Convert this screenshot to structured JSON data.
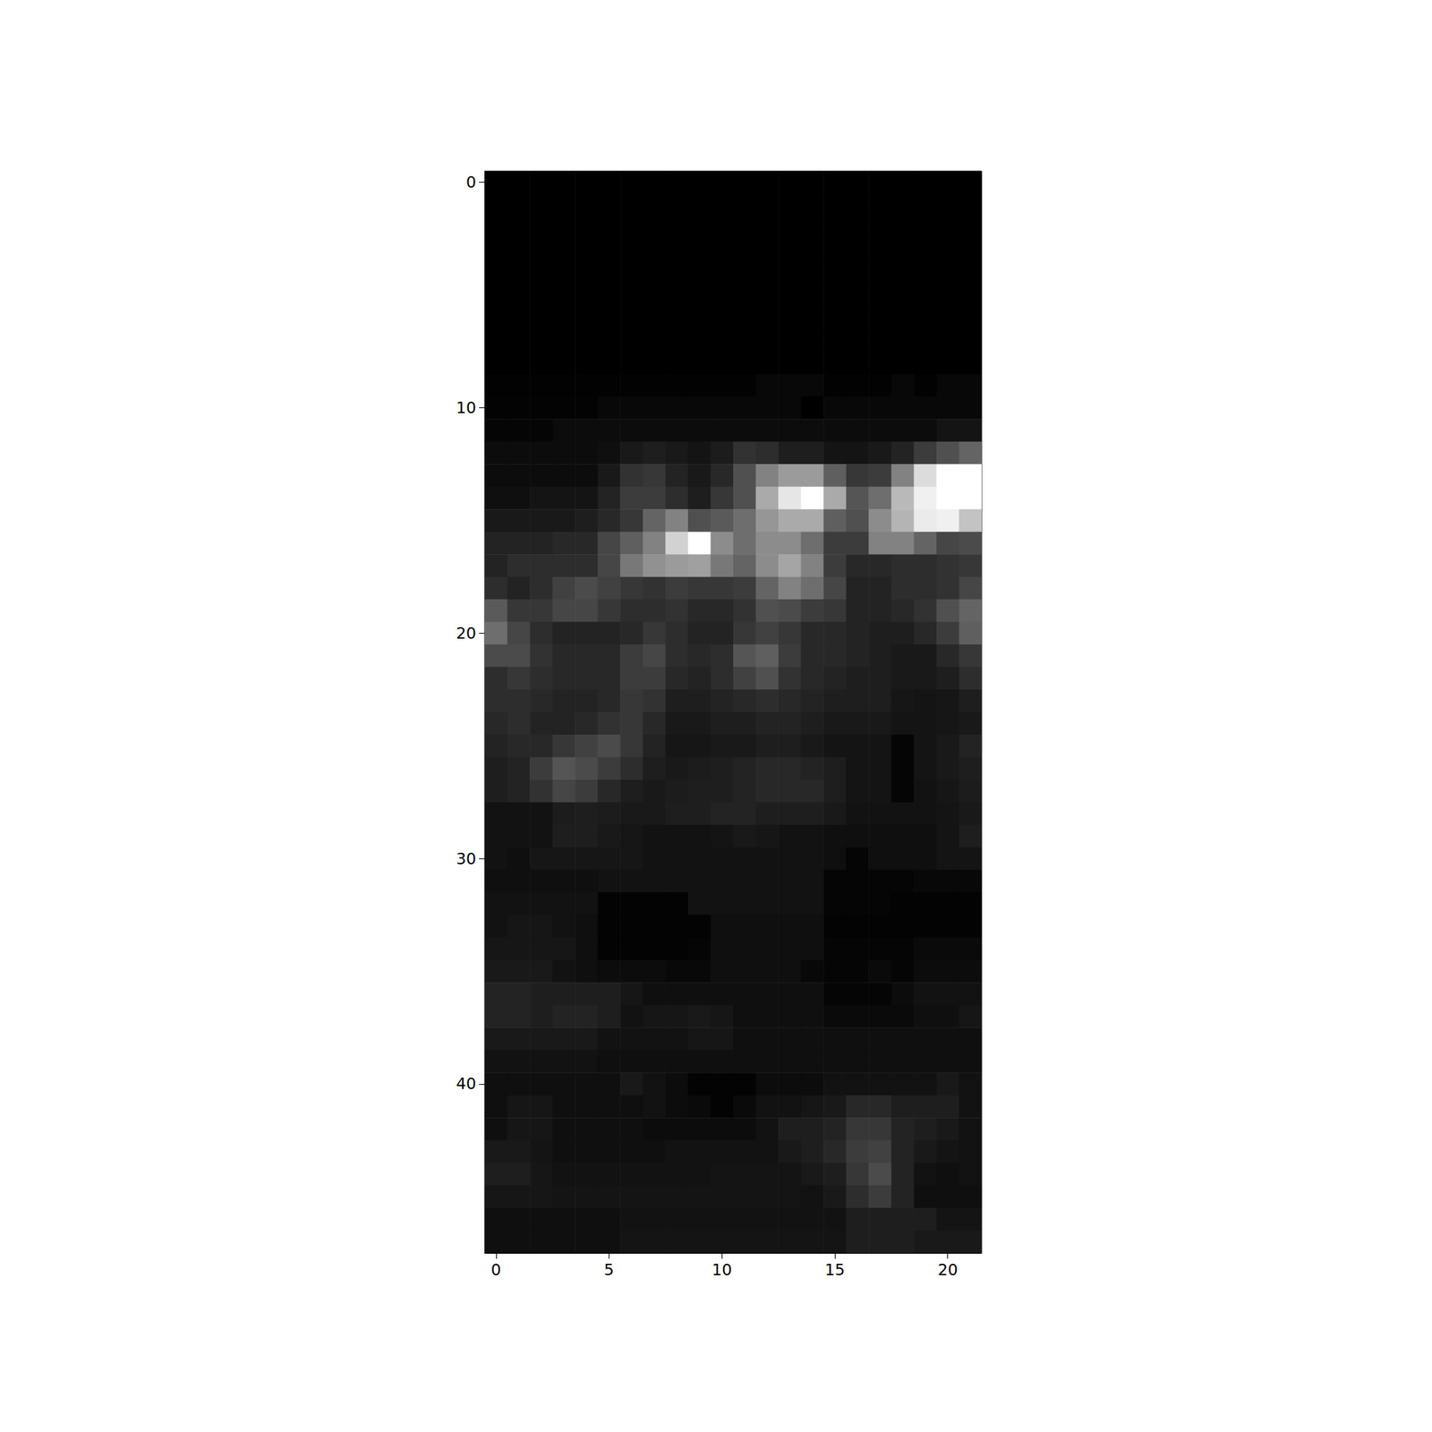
{
  "chart_data": {
    "type": "heatmap",
    "color": "gray",
    "color_range": [
      0,
      255
    ],
    "xlim": [
      -0.5,
      21.5
    ],
    "ylim": [
      47.5,
      -0.5
    ],
    "xticks": [
      0,
      5,
      10,
      15,
      20
    ],
    "yticks": [
      0,
      10,
      20,
      30,
      40
    ],
    "cells": [
      [
        0,
        0,
        0,
        0,
        0,
        0,
        0,
        0,
        0,
        0,
        0,
        0,
        0,
        0,
        0,
        0,
        0,
        0,
        0,
        0,
        0,
        0
      ],
      [
        0,
        0,
        0,
        0,
        0,
        0,
        0,
        0,
        0,
        0,
        0,
        0,
        0,
        0,
        0,
        0,
        0,
        0,
        0,
        0,
        0,
        0
      ],
      [
        0,
        0,
        0,
        0,
        0,
        0,
        0,
        0,
        0,
        0,
        0,
        0,
        0,
        0,
        0,
        0,
        0,
        0,
        0,
        0,
        0,
        0
      ],
      [
        0,
        0,
        0,
        0,
        0,
        0,
        0,
        0,
        0,
        0,
        0,
        0,
        0,
        0,
        0,
        0,
        0,
        0,
        0,
        0,
        0,
        0
      ],
      [
        0,
        0,
        0,
        0,
        0,
        0,
        0,
        0,
        0,
        0,
        0,
        0,
        0,
        0,
        0,
        0,
        0,
        0,
        0,
        0,
        0,
        0
      ],
      [
        0,
        0,
        0,
        0,
        0,
        0,
        0,
        0,
        0,
        0,
        0,
        0,
        0,
        0,
        0,
        0,
        0,
        0,
        0,
        0,
        0,
        0
      ],
      [
        0,
        0,
        0,
        0,
        0,
        0,
        0,
        0,
        0,
        0,
        0,
        0,
        0,
        0,
        0,
        0,
        0,
        0,
        0,
        0,
        0,
        0
      ],
      [
        0,
        0,
        0,
        0,
        0,
        0,
        0,
        0,
        0,
        0,
        0,
        0,
        0,
        0,
        0,
        0,
        0,
        0,
        0,
        0,
        0,
        0
      ],
      [
        0,
        0,
        0,
        0,
        0,
        0,
        0,
        0,
        0,
        0,
        0,
        0,
        0,
        0,
        0,
        0,
        0,
        0,
        0,
        0,
        0,
        0
      ],
      [
        2,
        2,
        2,
        2,
        2,
        2,
        2,
        2,
        2,
        2,
        2,
        2,
        8,
        8,
        8,
        2,
        2,
        2,
        8,
        2,
        8,
        8
      ],
      [
        3,
        3,
        3,
        3,
        3,
        8,
        8,
        8,
        8,
        8,
        8,
        8,
        8,
        8,
        0,
        8,
        8,
        8,
        8,
        8,
        8,
        8
      ],
      [
        5,
        5,
        5,
        12,
        12,
        12,
        12,
        12,
        12,
        12,
        12,
        12,
        12,
        12,
        12,
        12,
        12,
        12,
        12,
        12,
        20,
        20
      ],
      [
        12,
        12,
        12,
        12,
        12,
        15,
        25,
        30,
        25,
        20,
        28,
        50,
        45,
        30,
        30,
        20,
        20,
        25,
        35,
        60,
        80,
        100
      ],
      [
        12,
        12,
        12,
        12,
        12,
        25,
        50,
        55,
        35,
        25,
        40,
        80,
        130,
        155,
        155,
        95,
        55,
        60,
        130,
        220,
        255,
        255
      ],
      [
        15,
        15,
        20,
        20,
        20,
        35,
        60,
        60,
        45,
        30,
        55,
        80,
        170,
        230,
        255,
        170,
        85,
        110,
        185,
        240,
        255,
        255
      ],
      [
        25,
        25,
        25,
        25,
        30,
        40,
        55,
        100,
        130,
        80,
        90,
        110,
        150,
        170,
        170,
        95,
        80,
        140,
        180,
        235,
        240,
        195
      ],
      [
        35,
        35,
        35,
        40,
        40,
        70,
        95,
        130,
        210,
        255,
        140,
        110,
        140,
        140,
        110,
        60,
        60,
        130,
        130,
        100,
        70,
        75
      ],
      [
        35,
        45,
        45,
        45,
        45,
        70,
        120,
        145,
        155,
        160,
        120,
        100,
        140,
        165,
        130,
        60,
        40,
        40,
        45,
        45,
        50,
        55
      ],
      [
        45,
        35,
        45,
        65,
        75,
        65,
        55,
        50,
        60,
        55,
        55,
        60,
        100,
        130,
        110,
        70,
        35,
        35,
        45,
        45,
        50,
        70
      ],
      [
        90,
        55,
        55,
        70,
        70,
        55,
        45,
        45,
        50,
        40,
        40,
        50,
        80,
        75,
        60,
        55,
        35,
        35,
        40,
        50,
        80,
        100
      ],
      [
        110,
        70,
        45,
        35,
        35,
        35,
        40,
        55,
        45,
        35,
        35,
        55,
        65,
        55,
        40,
        40,
        35,
        30,
        30,
        40,
        60,
        95
      ],
      [
        75,
        75,
        50,
        40,
        40,
        40,
        60,
        70,
        45,
        40,
        45,
        85,
        95,
        60,
        40,
        40,
        35,
        30,
        25,
        25,
        40,
        55
      ],
      [
        45,
        55,
        45,
        40,
        40,
        40,
        60,
        60,
        40,
        35,
        45,
        65,
        80,
        50,
        40,
        35,
        30,
        30,
        25,
        25,
        30,
        45
      ],
      [
        45,
        45,
        40,
        35,
        35,
        40,
        55,
        50,
        30,
        30,
        35,
        40,
        45,
        40,
        35,
        30,
        30,
        30,
        22,
        20,
        22,
        30
      ],
      [
        40,
        45,
        35,
        35,
        40,
        50,
        55,
        40,
        25,
        25,
        30,
        30,
        35,
        35,
        30,
        25,
        25,
        25,
        20,
        20,
        22,
        25
      ],
      [
        35,
        40,
        40,
        55,
        65,
        75,
        55,
        35,
        22,
        22,
        25,
        25,
        30,
        30,
        25,
        20,
        20,
        20,
        5,
        20,
        25,
        35
      ],
      [
        30,
        35,
        60,
        85,
        75,
        60,
        45,
        30,
        25,
        28,
        30,
        35,
        40,
        40,
        35,
        30,
        20,
        20,
        5,
        20,
        25,
        30
      ],
      [
        30,
        35,
        50,
        70,
        60,
        40,
        30,
        25,
        28,
        30,
        30,
        35,
        40,
        40,
        40,
        30,
        20,
        20,
        5,
        18,
        22,
        28
      ],
      [
        18,
        18,
        18,
        28,
        30,
        28,
        25,
        25,
        30,
        30,
        35,
        35,
        30,
        30,
        30,
        25,
        18,
        18,
        18,
        18,
        20,
        25
      ],
      [
        18,
        18,
        18,
        30,
        30,
        25,
        22,
        18,
        18,
        18,
        20,
        25,
        22,
        18,
        18,
        15,
        15,
        15,
        15,
        15,
        20,
        30
      ],
      [
        18,
        15,
        22,
        22,
        22,
        22,
        22,
        18,
        18,
        18,
        18,
        18,
        18,
        18,
        18,
        15,
        5,
        15,
        15,
        15,
        20,
        20
      ],
      [
        15,
        15,
        15,
        15,
        15,
        18,
        18,
        18,
        18,
        18,
        18,
        18,
        18,
        18,
        18,
        5,
        5,
        5,
        5,
        8,
        8,
        8
      ],
      [
        18,
        18,
        18,
        18,
        18,
        3,
        3,
        3,
        3,
        18,
        18,
        18,
        18,
        18,
        18,
        5,
        5,
        5,
        3,
        3,
        3,
        3
      ],
      [
        18,
        22,
        22,
        18,
        15,
        3,
        3,
        3,
        3,
        3,
        15,
        15,
        15,
        15,
        15,
        3,
        3,
        3,
        3,
        3,
        3,
        3
      ],
      [
        22,
        22,
        22,
        22,
        15,
        3,
        3,
        3,
        3,
        5,
        15,
        15,
        15,
        15,
        15,
        5,
        5,
        5,
        5,
        10,
        10,
        10
      ],
      [
        25,
        25,
        25,
        18,
        15,
        12,
        12,
        12,
        8,
        8,
        15,
        15,
        15,
        15,
        8,
        5,
        5,
        10,
        5,
        12,
        12,
        12
      ],
      [
        35,
        35,
        30,
        30,
        30,
        30,
        22,
        15,
        15,
        15,
        15,
        15,
        15,
        15,
        15,
        5,
        5,
        5,
        12,
        18,
        18,
        18
      ],
      [
        35,
        35,
        30,
        35,
        35,
        30,
        18,
        22,
        22,
        25,
        22,
        15,
        15,
        15,
        15,
        10,
        10,
        10,
        10,
        15,
        15,
        22
      ],
      [
        25,
        25,
        25,
        25,
        25,
        18,
        18,
        18,
        18,
        22,
        22,
        15,
        15,
        15,
        15,
        15,
        15,
        15,
        15,
        15,
        15,
        15
      ],
      [
        18,
        18,
        18,
        18,
        18,
        15,
        15,
        15,
        15,
        15,
        15,
        15,
        15,
        15,
        15,
        15,
        15,
        15,
        15,
        15,
        15,
        15
      ],
      [
        15,
        15,
        15,
        15,
        15,
        15,
        25,
        18,
        12,
        3,
        3,
        3,
        12,
        12,
        12,
        18,
        18,
        18,
        18,
        18,
        25,
        18
      ],
      [
        15,
        22,
        22,
        15,
        15,
        15,
        15,
        18,
        12,
        10,
        3,
        10,
        18,
        18,
        22,
        25,
        40,
        40,
        30,
        30,
        30,
        18
      ],
      [
        15,
        22,
        22,
        15,
        15,
        15,
        15,
        12,
        12,
        12,
        12,
        12,
        18,
        30,
        30,
        35,
        55,
        55,
        35,
        30,
        25,
        18
      ],
      [
        25,
        25,
        20,
        15,
        15,
        15,
        15,
        15,
        18,
        18,
        18,
        18,
        18,
        25,
        30,
        40,
        60,
        65,
        35,
        25,
        20,
        18
      ],
      [
        30,
        30,
        22,
        18,
        18,
        18,
        18,
        18,
        18,
        18,
        20,
        20,
        20,
        20,
        25,
        30,
        55,
        75,
        35,
        18,
        15,
        18
      ],
      [
        22,
        22,
        22,
        20,
        20,
        20,
        20,
        20,
        20,
        20,
        20,
        20,
        20,
        20,
        18,
        25,
        45,
        60,
        35,
        15,
        15,
        15
      ],
      [
        15,
        15,
        15,
        15,
        15,
        15,
        18,
        18,
        18,
        18,
        18,
        18,
        18,
        18,
        18,
        18,
        30,
        30,
        30,
        30,
        20,
        20
      ],
      [
        15,
        15,
        15,
        15,
        15,
        15,
        20,
        20,
        20,
        20,
        20,
        20,
        20,
        20,
        20,
        20,
        30,
        30,
        30,
        25,
        25,
        25
      ]
    ]
  }
}
